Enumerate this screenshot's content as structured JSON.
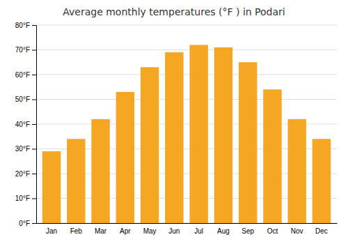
{
  "chart_data": {
    "type": "bar",
    "title": "Average monthly temperatures (°F ) in Podari",
    "categories": [
      "Jan",
      "Feb",
      "Mar",
      "Apr",
      "May",
      "Jun",
      "Jul",
      "Aug",
      "Sep",
      "Oct",
      "Nov",
      "Dec"
    ],
    "values": [
      29,
      34,
      42,
      53,
      63,
      69,
      72,
      71,
      65,
      54,
      42,
      34
    ],
    "color": "#F5A623",
    "ylim": [
      0,
      80
    ],
    "yticks": [
      {
        "value": 0,
        "label": "0°F"
      },
      {
        "value": 10,
        "label": "10°F"
      },
      {
        "value": 20,
        "label": "20°F"
      },
      {
        "value": 30,
        "label": "30°F"
      },
      {
        "value": 40,
        "label": "40°F"
      },
      {
        "value": 50,
        "label": "50°F"
      },
      {
        "value": 60,
        "label": "60°F"
      },
      {
        "value": 70,
        "label": "70°F"
      },
      {
        "value": 80,
        "label": "80°F"
      }
    ],
    "grid": true
  }
}
